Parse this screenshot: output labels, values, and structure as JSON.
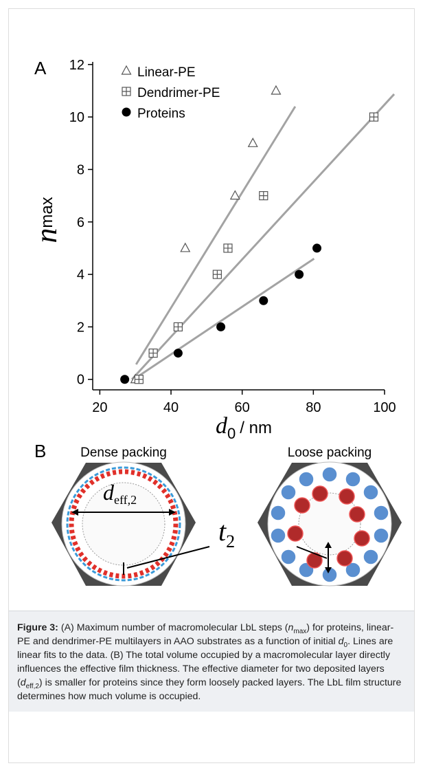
{
  "panel_a_label": "A",
  "panel_b_label": "B",
  "chart_data": {
    "type": "scatter",
    "y_label": {
      "symbol": "n",
      "subscript": "max"
    },
    "x_label": {
      "symbol": "d",
      "subscript": "0",
      "unit": "/ nm"
    },
    "xlim": [
      18,
      100
    ],
    "ylim": [
      -0.4,
      12.1
    ],
    "xticks": [
      20,
      40,
      60,
      80,
      100
    ],
    "yticks": [
      0,
      2,
      4,
      6,
      8,
      10,
      12
    ],
    "fit_color": "#a3a3a3",
    "series": [
      {
        "name": "Linear-PE",
        "marker": "triangle",
        "color": "#555555",
        "x": [
          30,
          44,
          58,
          63,
          69.5
        ],
        "values": [
          0,
          5,
          7,
          9,
          11
        ],
        "fit": {
          "x": [
            30.2,
            74.9
          ],
          "y": [
            0.57,
            10.4
          ]
        }
      },
      {
        "name": "Dendrimer-PE",
        "marker": "boxplus",
        "color": "#555555",
        "x": [
          31,
          35,
          42,
          53,
          56,
          66,
          97
        ],
        "values": [
          0,
          1,
          2,
          4,
          5,
          7,
          10
        ],
        "fit": {
          "x": [
            29,
            102.7
          ],
          "y": [
            0,
            10.87
          ]
        }
      },
      {
        "name": "Proteins",
        "marker": "circle",
        "color": "#000000",
        "x": [
          27,
          42,
          54,
          66,
          76,
          81
        ],
        "values": [
          0,
          1,
          2,
          3,
          4,
          5
        ],
        "fit": {
          "x": [
            29.5,
            80.2
          ],
          "y": [
            0,
            4.6
          ]
        }
      }
    ]
  },
  "diagram": {
    "left_title": "Dense packing",
    "right_title": "Loose packing",
    "diameter_label": {
      "symbol": "d",
      "subscript": "eff,2"
    },
    "thickness_label": {
      "symbol": "t",
      "subscript": "2"
    }
  },
  "caption": {
    "label": "Figure 3:",
    "segments": [
      " (A) Maximum number of macromolecular LbL steps (",
      "n",
      "max",
      ") for proteins, linear-PE and dendrimer-PE multilayers in AAO substrates as a function of initial ",
      "d",
      "0",
      ". Lines are linear fits to the data. (B) The total volume occupied by a macromolecular layer directly influences the effective film thickness. The effective diameter for two deposited layers (",
      "d",
      "eff,2",
      ") is smaller for proteins since they form loosely packed layers. The LbL film structure determines how much volume is occupied."
    ]
  }
}
